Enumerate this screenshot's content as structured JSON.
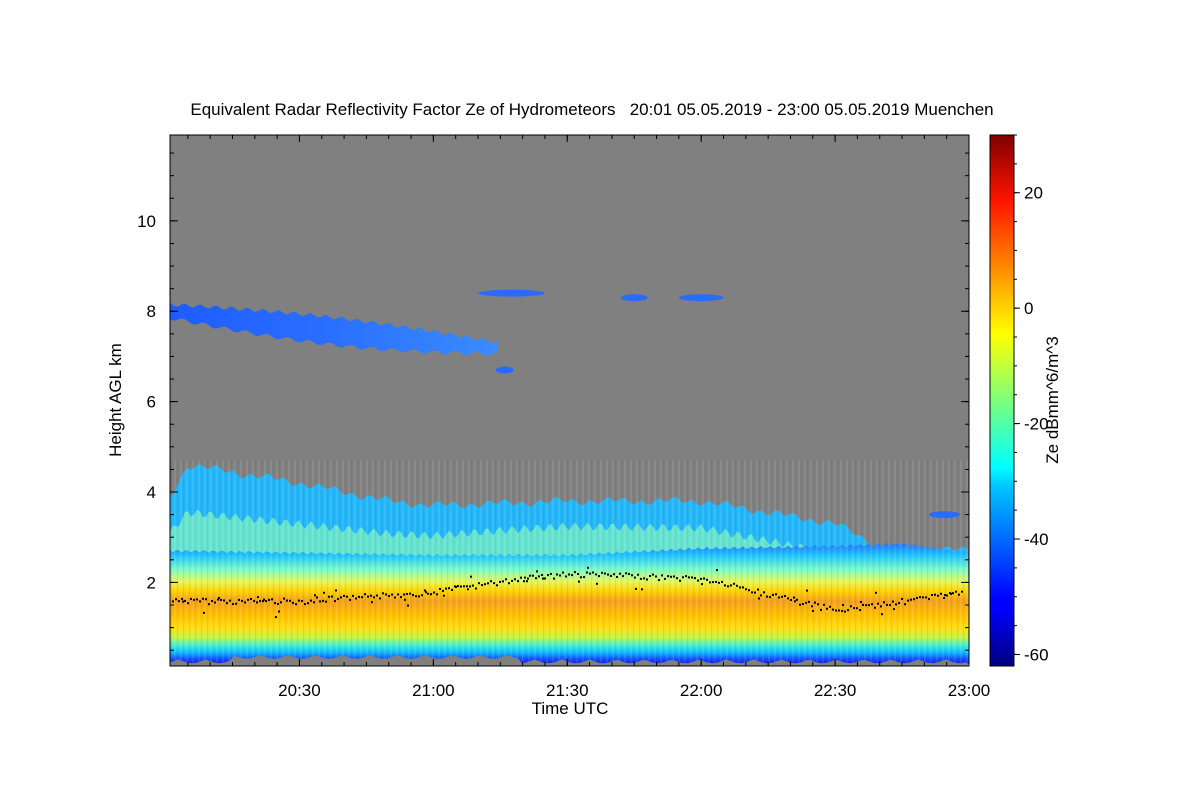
{
  "chart_data": {
    "type": "heatmap",
    "title": "Equivalent Radar Reflectivity Factor Ze of Hydrometeors   20:01 05.05.2019 - 23:00 05.05.2019 Muenchen",
    "xlabel": "Time UTC",
    "ylabel": "Height AGL km",
    "x_range": [
      "20:01",
      "23:00"
    ],
    "y_range_km": [
      0.15,
      11.9
    ],
    "x_ticks": [
      "20:30",
      "21:00",
      "21:30",
      "22:00",
      "22:30",
      "23:00"
    ],
    "y_ticks": [
      "2",
      "4",
      "6",
      "8",
      "10"
    ],
    "colorbar": {
      "label": "Ze dBmm^6/m^3",
      "range": [
        -62,
        30
      ],
      "ticks": [
        "20",
        "0",
        "-20",
        "-40",
        "-60"
      ],
      "colormap": "jet"
    },
    "background_color": "#808080",
    "features": {
      "cirrus_layer": {
        "time_start": "20:01",
        "time_end": "21:15",
        "top_km_start": 8.15,
        "base_km_start": 7.85,
        "top_km_end": 7.3,
        "base_km_end": 7.05,
        "ze_dbz": -45
      },
      "cirrus_fragments": [
        {
          "time_start": "21:10",
          "time_end": "21:25",
          "height_km": 8.4,
          "ze_dbz": -45
        },
        {
          "time_start": "21:42",
          "time_end": "21:48",
          "height_km": 8.3,
          "ze_dbz": -45
        },
        {
          "time_start": "21:55",
          "time_end": "22:05",
          "height_km": 8.3,
          "ze_dbz": -45
        },
        {
          "time_start": "21:14",
          "time_end": "21:18",
          "height_km": 6.7,
          "ze_dbz": -45
        },
        {
          "time_start": "22:51",
          "time_end": "22:58",
          "height_km": 3.5,
          "ze_dbz": -45
        }
      ],
      "stratiform_precipitation": {
        "time_start": "20:01",
        "time_end": "23:00",
        "echo_top_km": [
          [
            "20:01",
            3.9
          ],
          [
            "20:05",
            4.6
          ],
          [
            "20:30",
            4.2
          ],
          [
            "20:50",
            3.8
          ],
          [
            "21:00",
            3.7
          ],
          [
            "21:30",
            3.8
          ],
          [
            "22:00",
            3.8
          ],
          [
            "22:30",
            3.3
          ],
          [
            "22:40",
            2.8
          ],
          [
            "23:00",
            2.7
          ]
        ],
        "melting_layer_km": [
          [
            "20:01",
            1.6
          ],
          [
            "20:30",
            1.6
          ],
          [
            "21:00",
            1.8
          ],
          [
            "21:20",
            2.1
          ],
          [
            "21:30",
            2.2
          ],
          [
            "22:00",
            2.1
          ],
          [
            "22:30",
            1.4
          ],
          [
            "23:00",
            1.8
          ]
        ],
        "core_ze_dbz": 5
      },
      "melting_layer_marker_color": "#000000"
    }
  }
}
